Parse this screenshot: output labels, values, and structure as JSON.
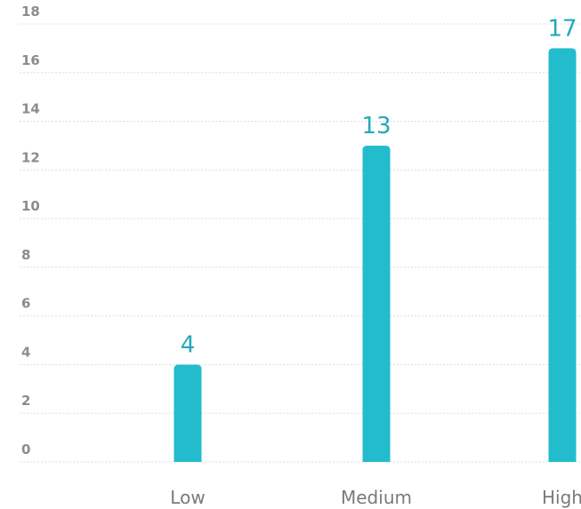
{
  "chart_data": {
    "type": "bar",
    "categories": [
      "Low",
      "Medium",
      "High"
    ],
    "values": [
      4,
      13,
      17
    ],
    "ylim": [
      0,
      18
    ],
    "yticks": [
      0,
      2,
      4,
      6,
      8,
      10,
      12,
      14,
      16,
      18
    ],
    "grid": true,
    "legend": "none",
    "bar_color": "#22bccc",
    "label_color": "#22a9b8"
  }
}
